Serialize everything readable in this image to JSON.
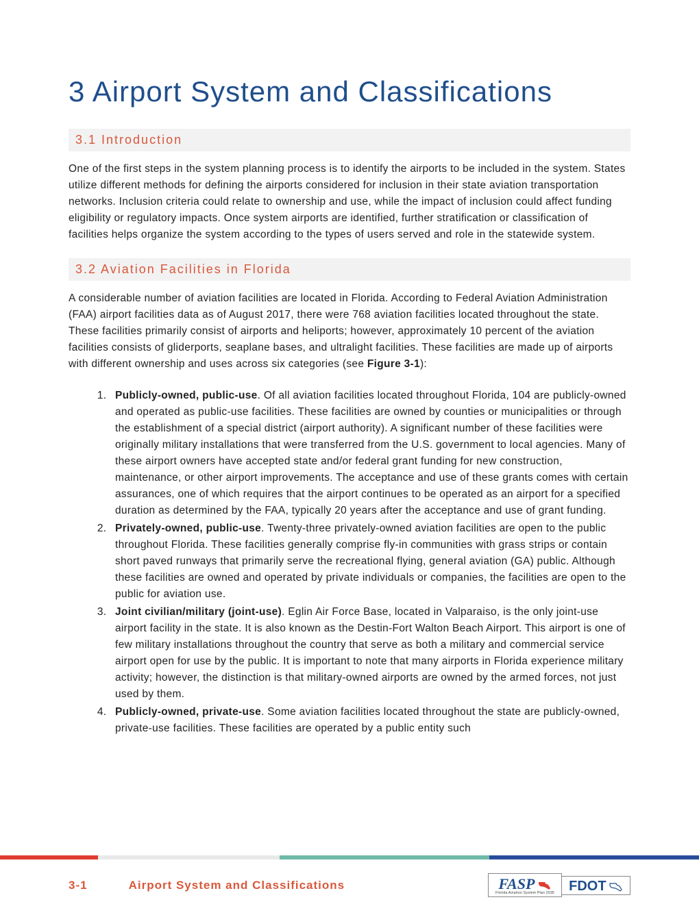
{
  "title": "3 Airport System and Classifications",
  "sections": {
    "intro": {
      "heading": "3.1  Introduction",
      "body": "One of the first steps in the system planning process is to identify the airports to be included in the system. States utilize different methods for defining the airports considered for inclusion in their state aviation transportation networks. Inclusion criteria could relate to ownership and use, while the impact of inclusion could affect funding eligibility or regulatory impacts. Once system airports are identified, further stratification or classification of facilities helps organize the system according to the types of users served and role in the statewide system."
    },
    "facilities": {
      "heading": "3.2  Aviation Facilities in Florida",
      "body_pre": "A considerable number of aviation facilities are located in Florida. According to Federal Aviation Administration (FAA) airport facilities data as of August 2017, there were 768 aviation facilities located throughout the state. These facilities primarily consist of airports and heliports; however, approximately 10 percent of the aviation facilities consists of gliderports, seaplane bases, and ultralight facilities. These facilities are made up of airports with different ownership and uses across six categories (see ",
      "body_bold": "Figure 3-1",
      "body_post": "):",
      "items": [
        {
          "title": "Publicly-owned, public-use",
          "text": ". Of all aviation facilities located throughout Florida, 104 are publicly-owned and operated as public-use facilities. These facilities are owned by counties or municipalities or through the establishment of a special district (airport authority). A significant number of these facilities were originally military installations that were transferred from the U.S. government to local agencies. Many of these airport owners have accepted state and/or federal grant funding for new construction, maintenance, or other airport improvements. The acceptance and use of these grants comes with certain assurances, one of which requires that the airport continues to be operated as an airport for a specified duration as determined by the FAA, typically 20 years after the acceptance and use of grant funding."
        },
        {
          "title": "Privately-owned, public-use",
          "text": ". Twenty-three privately-owned aviation facilities are open to the public throughout Florida. These facilities generally comprise fly-in communities with grass strips or contain short paved runways that primarily serve the recreational flying, general aviation (GA) public. Although these facilities are owned and operated by private individuals or companies, the facilities are open to the public for aviation use."
        },
        {
          "title": "Joint civilian/military (joint-use)",
          "text": ". Eglin Air Force Base, located in Valparaiso, is the only joint-use airport facility in the state. It is also known as the Destin-Fort Walton Beach Airport. This airport is one of few military installations throughout the country that serve as both a military and commercial service airport open for use by the public. It is important to note that many airports in Florida experience military activity; however, the distinction is that military-owned airports are owned by the armed forces, not just used by them."
        },
        {
          "title": "Publicly-owned, private-use",
          "text": ". Some aviation facilities located throughout the state are publicly-owned, private-use facilities. These facilities are operated by a public entity such"
        }
      ]
    }
  },
  "footer": {
    "page_number": "3-1",
    "title": "Airport System and Classifications",
    "bar_colors": [
      {
        "color": "#e03c31",
        "width": "14%"
      },
      {
        "color": "#e9e9e9",
        "width": "26%"
      },
      {
        "color": "#6fb9a8",
        "width": "30%"
      },
      {
        "color": "#2a4d9b",
        "width": "30%"
      }
    ],
    "logos": {
      "fasp": {
        "main": "FASP",
        "sub": "Florida Aviation System Plan 2035"
      },
      "fdot": {
        "main": "FDOT"
      }
    }
  },
  "colors": {
    "title": "#1f4e8c",
    "accent": "#d9583b",
    "heading_bg": "#f2f2f2",
    "text": "#222222"
  }
}
